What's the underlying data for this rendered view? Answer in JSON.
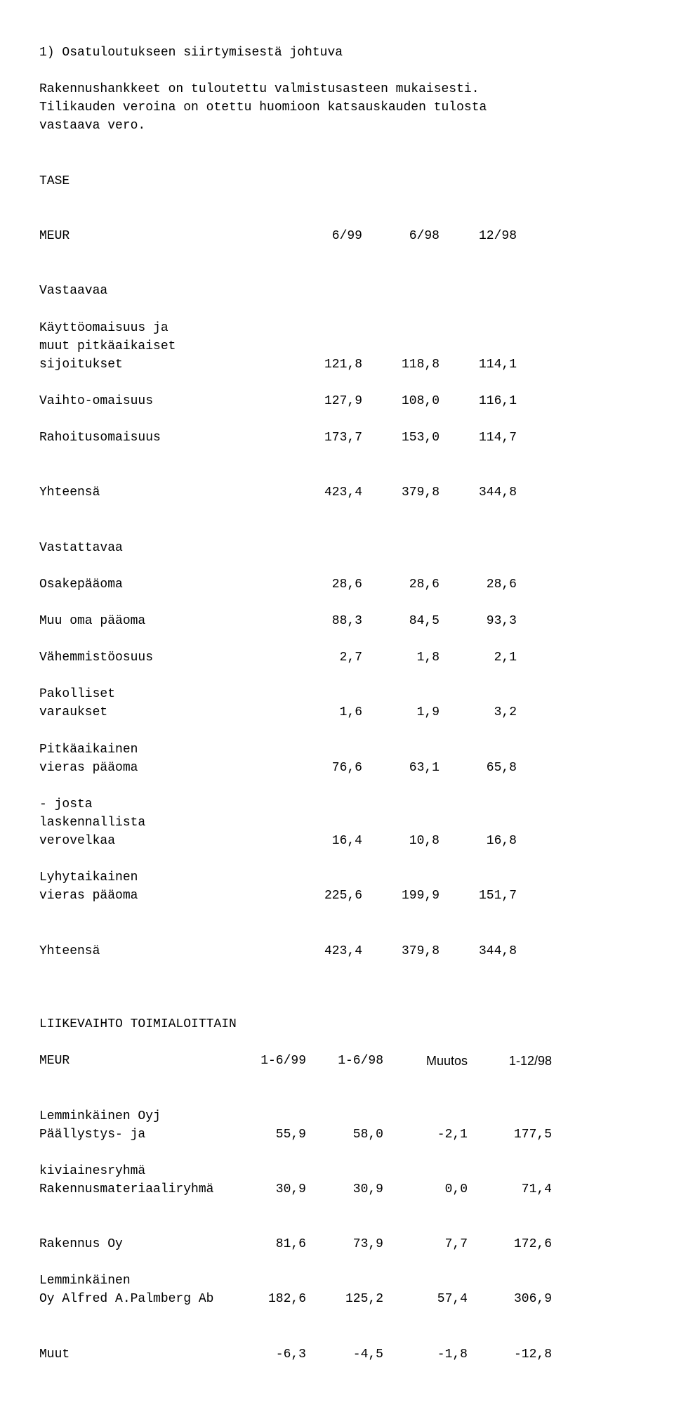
{
  "note": {
    "lead": "1) Osatuloutukseen siirtymisestä johtuva",
    "body_l1": "Rakennushankkeet on tuloutettu valmistusasteen mukaisesti.",
    "body_l2": "Tilikauden veroina on otettu huomioon katsauskauden tulosta",
    "body_l3": "vastaava vero."
  },
  "tase": {
    "title": "TASE",
    "col_labels": {
      "meur": "MEUR",
      "c1": "6/99",
      "c2": "6/98",
      "c3": "12/98"
    },
    "vastaavaa": {
      "title": "Vastaavaa",
      "rows": [
        {
          "l1": "Käyttöomaisuus ja",
          "l2": "muut pitkäaikaiset",
          "l3": "sijoitukset",
          "v": [
            "121,8",
            "118,8",
            "114,1"
          ]
        },
        {
          "l1": "Vaihto-omaisuus",
          "v": [
            "127,9",
            "108,0",
            "116,1"
          ]
        },
        {
          "l1": "Rahoitusomaisuus",
          "v": [
            "173,7",
            "153,0",
            "114,7"
          ]
        }
      ],
      "total": {
        "label": "Yhteensä",
        "v": [
          "423,4",
          "379,8",
          "344,8"
        ]
      }
    },
    "vastattavaa": {
      "title": "Vastattavaa",
      "rows": [
        {
          "l1": "Osakepääoma",
          "v": [
            "28,6",
            "28,6",
            "28,6"
          ]
        },
        {
          "l1": "Muu oma pääoma",
          "v": [
            "88,3",
            "84,5",
            "93,3"
          ]
        },
        {
          "l1": "Vähemmistöosuus",
          "v": [
            "2,7",
            "1,8",
            "2,1"
          ]
        },
        {
          "l1": "Pakolliset",
          "l2": "varaukset",
          "v": [
            "1,6",
            "1,9",
            "3,2"
          ]
        },
        {
          "l1": "Pitkäaikainen",
          "l2": "vieras pääoma",
          "v": [
            "76,6",
            "63,1",
            "65,8"
          ]
        },
        {
          "l1": "- josta",
          "l2": "laskennallista",
          "l3": "verovelkaa",
          "v": [
            "16,4",
            "10,8",
            "16,8"
          ]
        },
        {
          "l1": "Lyhytaikainen",
          "l2": "vieras pääoma",
          "v": [
            "225,6",
            "199,9",
            "151,7"
          ]
        }
      ],
      "total": {
        "label": "Yhteensä",
        "v": [
          "423,4",
          "379,8",
          "344,8"
        ]
      }
    }
  },
  "liikevaihto": {
    "title": "LIIKEVAIHTO TOIMIALOITTAIN",
    "col_labels": {
      "meur": "MEUR",
      "c1": "1-6/99",
      "c2": "1-6/98",
      "c3": "Muutos",
      "c4": "1-12/98"
    },
    "rows": [
      {
        "l1": "Lemminkäinen Oyj"
      },
      {
        "l1": "Päällystys- ja",
        "l2": "kiviainesryhmä",
        "v": [
          "55,9",
          "58,0",
          "-2,1",
          "177,5"
        ]
      },
      {
        "l1": "Rakennusmateriaaliryhmä",
        "v": [
          "30,9",
          "30,9",
          "0,0",
          "71,4"
        ]
      },
      {
        "blank": true
      },
      {
        "l1": "Rakennus Oy",
        "l2": "Lemminkäinen",
        "v": [
          "81,6",
          "73,9",
          "7,7",
          "172,6"
        ]
      },
      {
        "l1": "Oy Alfred A.Palmberg Ab",
        "v": [
          "182,6",
          "125,2",
          "57,4",
          "306,9"
        ]
      },
      {
        "blank": true
      },
      {
        "l1": "Muut",
        "v": [
          "-6,3",
          "-4,5",
          "-1,8",
          "-12,8"
        ]
      }
    ]
  }
}
